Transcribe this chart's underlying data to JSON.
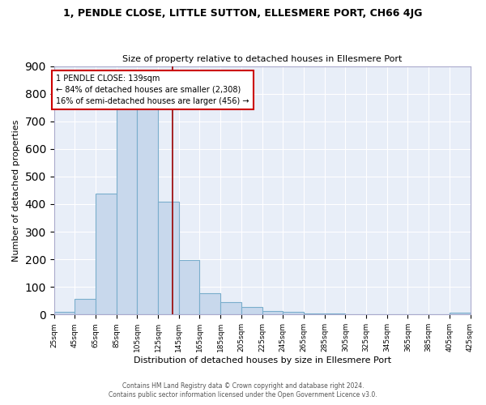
{
  "title": "1, PENDLE CLOSE, LITTLE SUTTON, ELLESMERE PORT, CH66 4JG",
  "subtitle": "Size of property relative to detached houses in Ellesmere Port",
  "xlabel": "Distribution of detached houses by size in Ellesmere Port",
  "ylabel": "Number of detached properties",
  "bin_edges": [
    25,
    45,
    65,
    85,
    105,
    125,
    145,
    165,
    185,
    205,
    225,
    245,
    265,
    285,
    305,
    325,
    345,
    365,
    385,
    405,
    425
  ],
  "counts": [
    10,
    58,
    438,
    750,
    750,
    408,
    198,
    76,
    44,
    28,
    12,
    10,
    5,
    4,
    0,
    0,
    0,
    0,
    0,
    7
  ],
  "bar_color": "#c8d8ec",
  "bar_edge_color": "#7aaecc",
  "vline_x": 139,
  "vline_color": "#990000",
  "annotation_text": "1 PENDLE CLOSE: 139sqm\n← 84% of detached houses are smaller (2,308)\n16% of semi-detached houses are larger (456) →",
  "annotation_box_color": "white",
  "annotation_box_edge_color": "#cc0000",
  "bg_color": "#e8eef8",
  "grid_color": "white",
  "ylim": [
    0,
    900
  ],
  "yticks": [
    0,
    100,
    200,
    300,
    400,
    500,
    600,
    700,
    800,
    900
  ],
  "footer_line1": "Contains HM Land Registry data © Crown copyright and database right 2024.",
  "footer_line2": "Contains public sector information licensed under the Open Government Licence v3.0."
}
